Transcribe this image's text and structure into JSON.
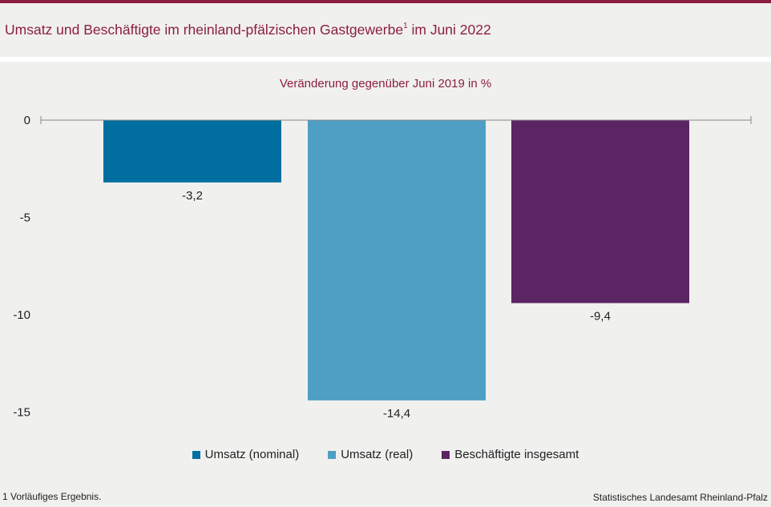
{
  "header": {
    "title": "Umsatz und Beschäftigte im rheinland-pfälzischen Gastgewerbe",
    "title_footnote_mark": "1",
    "title_suffix": " im Juni 2022"
  },
  "chart_data": {
    "type": "bar",
    "title": "Veränderung gegenüber Juni 2019 in %",
    "categories": [
      "Umsatz (nominal)",
      "Umsatz (real)",
      "Beschäftigte insgesamt"
    ],
    "values": [
      -3.2,
      -14.4,
      -9.4
    ],
    "value_labels": [
      "-3,2",
      "-14,4",
      "-9,4"
    ],
    "colors": [
      "#006fa0",
      "#4e9fc3",
      "#5b2462"
    ],
    "yticks": [
      0,
      -5,
      -10,
      -15
    ],
    "ytick_labels": [
      "0",
      "-5",
      "-10",
      "-15"
    ],
    "ylim": [
      -15,
      0
    ],
    "grid": false,
    "legend_position": "bottom"
  },
  "footer": {
    "footnote": "1 Vorläufiges  Ergebnis.",
    "source": "Statistisches Landesamt  Rheinland-Pfalz"
  }
}
